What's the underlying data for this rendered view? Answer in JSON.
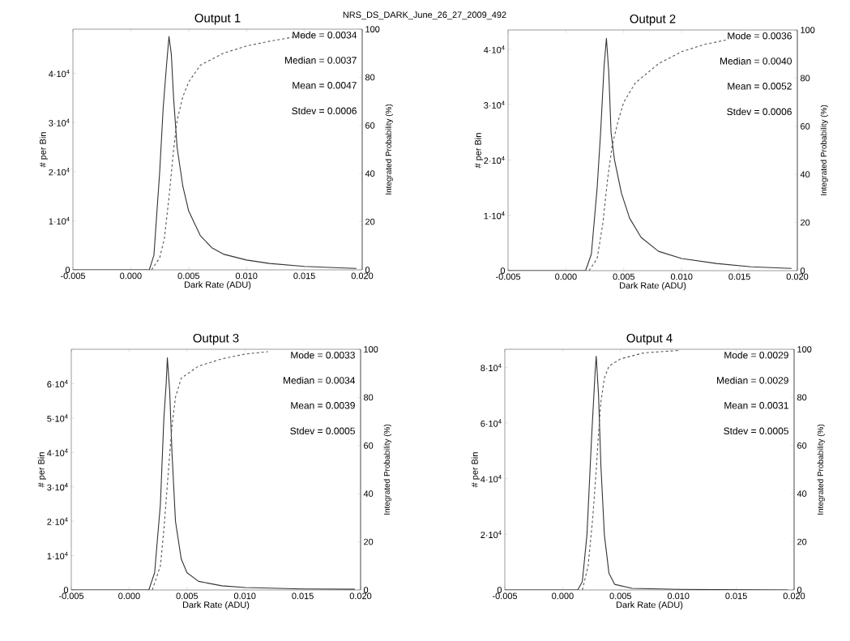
{
  "chart_data": [
    {
      "type": "line",
      "title": "Output 1",
      "subtitle": "NRS_DS_DARK_June_26_27_2009_492",
      "xlabel": "Dark Rate (ADU)",
      "ylabel": "# per Bin",
      "y2label": "Integrated Probability (%)",
      "annotations": [
        "Mode = 0.0034",
        "Median = 0.0037",
        "Mean = 0.0047",
        "Stdev = 0.0006"
      ],
      "xlim": [
        -0.005,
        0.02
      ],
      "xticks": [
        -0.005,
        {
          "value": 0,
          "label": "0.000"
        },
        0.005,
        {
          "value": 0.01,
          "label": "0.010"
        },
        0.015,
        {
          "value": 0.02,
          "label": "0.020"
        }
      ],
      "ylim": [
        0,
        49000
      ],
      "yticks": [
        0,
        {
          "value": 10000,
          "label": "1·10$^{4}$"
        },
        {
          "value": 20000,
          "label": "2·10$^{4}$"
        },
        {
          "value": 30000,
          "label": "3·10$^{4}$"
        },
        {
          "value": 40000,
          "label": "4·10$^{4}$"
        }
      ],
      "y2lim": [
        0,
        100
      ],
      "y2ticks": [
        0,
        20,
        40,
        60,
        80,
        100
      ],
      "series": [
        {
          "color": "#333333",
          "line_style": "solid",
          "x": [
            -0.005,
            0.0016,
            0.002,
            0.0025,
            0.0028,
            0.0031,
            0.0033,
            0.0035,
            0.0037,
            0.004,
            0.0045,
            0.005,
            0.006,
            0.007,
            0.008,
            0.01,
            0.012,
            0.015,
            0.018,
            0.0195
          ],
          "values": [
            0,
            0,
            3000,
            20000,
            33000,
            42000,
            47500,
            44000,
            35000,
            25000,
            17000,
            12000,
            7000,
            4500,
            3200,
            2000,
            1300,
            700,
            400,
            300
          ]
        },
        {
          "color": "#555555",
          "line_style": "dashed",
          "axis": "y2",
          "x": [
            0.0018,
            0.0025,
            0.0029,
            0.0033,
            0.0037,
            0.004,
            0.0045,
            0.005,
            0.006,
            0.008,
            0.01,
            0.012,
            0.015
          ],
          "values": [
            0,
            5,
            13,
            30,
            50,
            62,
            72,
            78,
            85,
            90,
            93,
            95,
            97.5
          ]
        }
      ]
    },
    {
      "type": "line",
      "title": "Output 2",
      "xlabel": "Dark Rate (ADU)",
      "ylabel": "# per Bin",
      "y2label": "Integrated Probability (%)",
      "annotations": [
        "Mode = 0.0036",
        "Median = 0.0040",
        "Mean = 0.0052",
        "Stdev = 0.0006"
      ],
      "xlim": [
        -0.005,
        0.02
      ],
      "xticks": [
        -0.005,
        {
          "value": 0,
          "label": "0.000"
        },
        0.005,
        {
          "value": 0.01,
          "label": "0.010"
        },
        0.015,
        {
          "value": 0.02,
          "label": "0.020"
        }
      ],
      "ylim": [
        0,
        43500
      ],
      "yticks": [
        0,
        {
          "value": 10000,
          "label": "1·10$^{4}$"
        },
        {
          "value": 20000,
          "label": "2·10$^{4}$"
        },
        {
          "value": 30000,
          "label": "3·10$^{4}$"
        },
        {
          "value": 40000,
          "label": "4·10$^{4}$"
        }
      ],
      "y2lim": [
        0,
        100
      ],
      "y2ticks": [
        0,
        20,
        40,
        60,
        80,
        100
      ],
      "series": [
        {
          "color": "#333333",
          "line_style": "solid",
          "x": [
            -0.005,
            0.0017,
            0.0022,
            0.0027,
            0.003,
            0.0033,
            0.0035,
            0.0037,
            0.0039,
            0.0042,
            0.0048,
            0.0055,
            0.0065,
            0.008,
            0.01,
            0.013,
            0.016,
            0.0195
          ],
          "values": [
            0,
            0,
            3000,
            15000,
            25000,
            37000,
            42000,
            36000,
            25000,
            20000,
            14000,
            9500,
            6000,
            3500,
            2200,
            1300,
            700,
            400
          ]
        },
        {
          "color": "#555555",
          "line_style": "dashed",
          "axis": "y2",
          "x": [
            0.002,
            0.0027,
            0.0032,
            0.0036,
            0.004,
            0.0045,
            0.005,
            0.006,
            0.008,
            0.01,
            0.012,
            0.014
          ],
          "values": [
            0,
            5,
            20,
            38,
            52,
            62,
            70,
            78,
            86,
            91,
            94,
            96
          ]
        }
      ]
    },
    {
      "type": "line",
      "title": "Output 3",
      "xlabel": "Dark Rate (ADU)",
      "ylabel": "# per Bin",
      "y2label": "Integrated Probability (%)",
      "annotations": [
        "Mode = 0.0033",
        "Median = 0.0034",
        "Mean = 0.0039",
        "Stdev = 0.0005"
      ],
      "xlim": [
        -0.005,
        0.02
      ],
      "xticks": [
        -0.005,
        {
          "value": 0,
          "label": "0.000"
        },
        0.005,
        {
          "value": 0.01,
          "label": "0.010"
        },
        0.015,
        {
          "value": 0.02,
          "label": "0.020"
        }
      ],
      "ylim": [
        0,
        70000
      ],
      "yticks": [
        0,
        {
          "value": 10000,
          "label": "1·10$^{4}$"
        },
        {
          "value": 20000,
          "label": "2·10$^{4}$"
        },
        {
          "value": 30000,
          "label": "3·10$^{4}$"
        },
        {
          "value": 40000,
          "label": "4·10$^{4}$"
        },
        {
          "value": 50000,
          "label": "5·10$^{4}$"
        },
        {
          "value": 60000,
          "label": "6·10$^{4}$"
        }
      ],
      "y2lim": [
        0,
        100
      ],
      "y2ticks": [
        0,
        20,
        40,
        60,
        80,
        100
      ],
      "series": [
        {
          "color": "#333333",
          "line_style": "solid",
          "x": [
            -0.005,
            0.0017,
            0.0022,
            0.0027,
            0.003,
            0.0032,
            0.0033,
            0.0035,
            0.0037,
            0.004,
            0.0045,
            0.005,
            0.006,
            0.008,
            0.01,
            0.015,
            0.0195
          ],
          "values": [
            0,
            0,
            5000,
            25000,
            50000,
            60000,
            67500,
            58000,
            40000,
            20000,
            9000,
            5000,
            2500,
            1200,
            700,
            300,
            200
          ]
        },
        {
          "color": "#555555",
          "line_style": "dashed",
          "axis": "y2",
          "x": [
            0.002,
            0.0027,
            0.003,
            0.0034,
            0.0037,
            0.004,
            0.0045,
            0.006,
            0.008,
            0.01,
            0.012
          ],
          "values": [
            0,
            10,
            25,
            50,
            68,
            80,
            88,
            93,
            96,
            98,
            99
          ]
        }
      ]
    },
    {
      "type": "line",
      "title": "Output 4",
      "xlabel": "Dark Rate (ADU)",
      "ylabel": "# per Bin",
      "y2label": "Integrated Probability (%)",
      "annotations": [
        "Mode = 0.0029",
        "Median = 0.0029",
        "Mean = 0.0031",
        "Stdev = 0.0005"
      ],
      "xlim": [
        -0.005,
        0.02
      ],
      "xticks": [
        -0.005,
        {
          "value": 0,
          "label": "0.000"
        },
        0.005,
        {
          "value": 0.01,
          "label": "0.010"
        },
        0.015,
        {
          "value": 0.02,
          "label": "0.020"
        }
      ],
      "ylim": [
        0,
        86500
      ],
      "yticks": [
        0,
        {
          "value": 20000,
          "label": "2·10$^{4}$"
        },
        {
          "value": 40000,
          "label": "4·10$^{4}$"
        },
        {
          "value": 60000,
          "label": "6·10$^{4}$"
        },
        {
          "value": 80000,
          "label": "8·10$^{4}$"
        }
      ],
      "y2lim": [
        0,
        100
      ],
      "y2ticks": [
        0,
        20,
        40,
        60,
        80,
        100
      ],
      "series": [
        {
          "color": "#333333",
          "line_style": "solid",
          "x": [
            -0.005,
            0.0013,
            0.0017,
            0.0021,
            0.0025,
            0.0028,
            0.0029,
            0.0031,
            0.0033,
            0.0036,
            0.004,
            0.0045,
            0.006,
            0.01,
            0.0195
          ],
          "values": [
            0,
            0,
            3000,
            20000,
            55000,
            78000,
            84000,
            70000,
            45000,
            20000,
            6000,
            2000,
            600,
            200,
            0
          ]
        },
        {
          "color": "#555555",
          "line_style": "dashed",
          "axis": "y2",
          "x": [
            0.0017,
            0.0022,
            0.0026,
            0.0029,
            0.0031,
            0.0033,
            0.0036,
            0.004,
            0.005,
            0.007,
            0.01
          ],
          "values": [
            0,
            10,
            30,
            50,
            65,
            78,
            88,
            93,
            96,
            98.5,
            99.5
          ]
        }
      ]
    }
  ]
}
